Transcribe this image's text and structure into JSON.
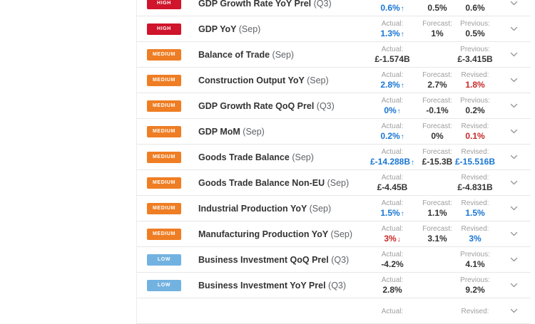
{
  "colors": {
    "badge": {
      "HIGH": "#cf142b",
      "MEDIUM": "#ef7d23",
      "LOW": "#72b2e0"
    },
    "value": {
      "blue": "#1976d2",
      "red": "#c62828",
      "dark": "#333333"
    },
    "label_gray": "#9e9e9e",
    "chevron_gray": "#999999"
  },
  "icons": {
    "trend_up": "↑",
    "trend_down": "↓",
    "expand": "chevron-down"
  },
  "table": {
    "rows": [
      {
        "importance": "HIGH",
        "name": "GDP Growth Rate YoY Prel",
        "period": "(Q3)",
        "cells": [
          {
            "label": "",
            "value": "0.6%",
            "color": "blue",
            "arrow": "up"
          },
          {
            "label": "",
            "value": "0.5%",
            "color": "dark"
          },
          {
            "label": "",
            "value": "0.6%",
            "color": "dark"
          }
        ]
      },
      {
        "importance": "HIGH",
        "name": "GDP YoY",
        "period": "(Sep)",
        "cells": [
          {
            "label": "Actual:",
            "value": "1.3%",
            "color": "blue",
            "arrow": "up"
          },
          {
            "label": "Forecast:",
            "value": "1%",
            "color": "dark"
          },
          {
            "label": "Previous:",
            "value": "0.5%",
            "color": "dark"
          }
        ]
      },
      {
        "importance": "MEDIUM",
        "name": "Balance of Trade",
        "period": "(Sep)",
        "cells": [
          {
            "label": "Actual:",
            "value": "£-1.574B",
            "color": "dark"
          },
          null,
          {
            "label": "Previous:",
            "value": "£-3.415B",
            "color": "dark"
          }
        ]
      },
      {
        "importance": "MEDIUM",
        "name": "Construction Output YoY",
        "period": "(Sep)",
        "cells": [
          {
            "label": "Actual:",
            "value": "2.8%",
            "color": "blue",
            "arrow": "up"
          },
          {
            "label": "Forecast:",
            "value": "2.7%",
            "color": "dark"
          },
          {
            "label": "Revised:",
            "value": "1.8%",
            "color": "red"
          }
        ]
      },
      {
        "importance": "MEDIUM",
        "name": "GDP Growth Rate QoQ Prel",
        "period": "(Q3)",
        "cells": [
          {
            "label": "Actual:",
            "value": "0%",
            "color": "blue",
            "arrow": "up"
          },
          {
            "label": "Forecast:",
            "value": "-0.1%",
            "color": "dark"
          },
          {
            "label": "Previous:",
            "value": "0.2%",
            "color": "dark"
          }
        ]
      },
      {
        "importance": "MEDIUM",
        "name": "GDP MoM",
        "period": "(Sep)",
        "cells": [
          {
            "label": "Actual:",
            "value": "0.2%",
            "color": "blue",
            "arrow": "up"
          },
          {
            "label": "Forecast:",
            "value": "0%",
            "color": "dark"
          },
          {
            "label": "Revised:",
            "value": "0.1%",
            "color": "red"
          }
        ]
      },
      {
        "importance": "MEDIUM",
        "name": "Goods Trade Balance",
        "period": "(Sep)",
        "cells": [
          {
            "label": "Actual:",
            "value": "£-14.288B",
            "color": "blue",
            "arrow": "up"
          },
          {
            "label": "Forecast:",
            "value": "£-15.3B",
            "color": "dark"
          },
          {
            "label": "Revised:",
            "value": "£-15.516B",
            "color": "blue"
          }
        ]
      },
      {
        "importance": "MEDIUM",
        "name": "Goods Trade Balance Non-EU",
        "period": "(Sep)",
        "cells": [
          {
            "label": "Actual:",
            "value": "£-4.45B",
            "color": "dark"
          },
          null,
          {
            "label": "Revised:",
            "value": "£-4.831B",
            "color": "dark"
          }
        ]
      },
      {
        "importance": "MEDIUM",
        "name": "Industrial Production YoY",
        "period": "(Sep)",
        "cells": [
          {
            "label": "Actual:",
            "value": "1.5%",
            "color": "blue",
            "arrow": "up"
          },
          {
            "label": "Forecast:",
            "value": "1.1%",
            "color": "dark"
          },
          {
            "label": "Revised:",
            "value": "1.5%",
            "color": "blue"
          }
        ]
      },
      {
        "importance": "MEDIUM",
        "name": "Manufacturing Production YoY",
        "period": "(Sep)",
        "cells": [
          {
            "label": "Actual:",
            "value": "3%",
            "color": "red",
            "arrow": "down"
          },
          {
            "label": "Forecast:",
            "value": "3.1%",
            "color": "dark"
          },
          {
            "label": "Revised:",
            "value": "3%",
            "color": "blue"
          }
        ]
      },
      {
        "importance": "LOW",
        "name": "Business Investment QoQ Prel",
        "period": "(Q3)",
        "cells": [
          {
            "label": "Actual:",
            "value": "-4.2%",
            "color": "dark"
          },
          null,
          {
            "label": "Previous:",
            "value": "4.1%",
            "color": "dark"
          }
        ]
      },
      {
        "importance": "LOW",
        "name": "Business Investment YoY Prel",
        "period": "(Q3)",
        "cells": [
          {
            "label": "Actual:",
            "value": "2.8%",
            "color": "dark"
          },
          null,
          {
            "label": "Previous:",
            "value": "9.2%",
            "color": "dark"
          }
        ]
      },
      {
        "importance": "",
        "name": "",
        "period": "",
        "cells": [
          {
            "label": "Actual:",
            "value": "",
            "color": "dark"
          },
          null,
          {
            "label": "Revised:",
            "value": "",
            "color": "dark"
          }
        ]
      }
    ]
  }
}
